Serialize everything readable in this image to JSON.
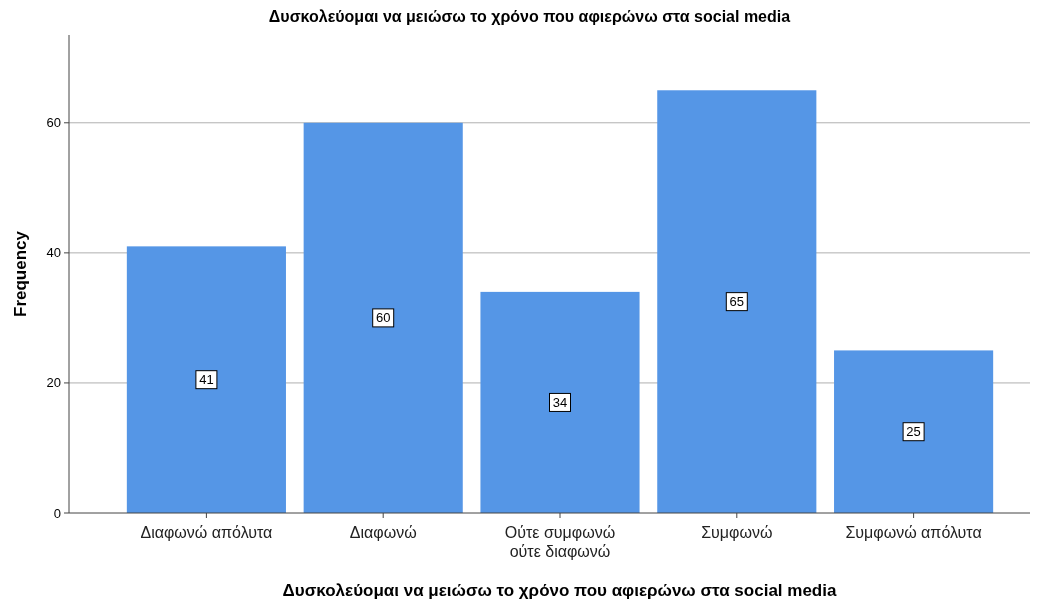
{
  "chart_data": {
    "type": "bar",
    "title": "Δυσκολεύομαι να μειώσω το χρόνο που αφιερώνω στα social media",
    "xlabel": "Δυσκολεύομαι να μειώσω το χρόνο που αφιερώνω στα social media",
    "ylabel": "Frequency",
    "categories": [
      "Διαφωνώ απόλυτα",
      "Διαφωνώ",
      "Ούτε συμφωνώ ούτε διαφωνώ",
      "Συμφωνώ",
      "Συμφωνώ απόλυτα"
    ],
    "values": [
      41,
      60,
      34,
      65,
      25
    ],
    "color": "#5596e6",
    "ylim": [
      0,
      73.5
    ],
    "yticks": [
      0,
      20,
      40,
      60
    ],
    "grid": "y",
    "data_labels": true
  }
}
